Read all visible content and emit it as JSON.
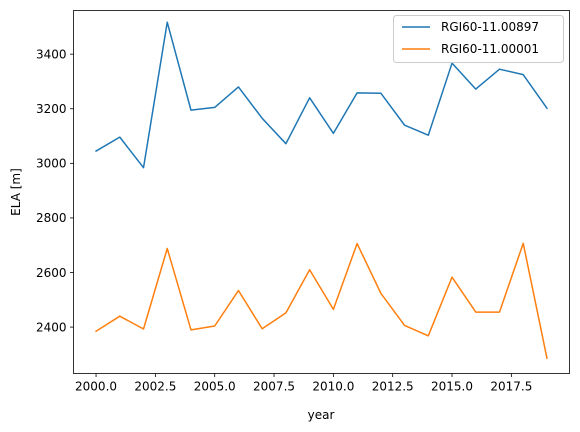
{
  "chart_data": {
    "type": "line",
    "title": "",
    "xlabel": "year",
    "ylabel": "ELA [m]",
    "xlim": [
      1999.05,
      2019.95
    ],
    "ylim": [
      2230,
      3560
    ],
    "xticks": [
      {
        "value": 2000.0,
        "label": "2000.0"
      },
      {
        "value": 2002.5,
        "label": "2002.5"
      },
      {
        "value": 2005.0,
        "label": "2005.0"
      },
      {
        "value": 2007.5,
        "label": "2007.5"
      },
      {
        "value": 2010.0,
        "label": "2010.0"
      },
      {
        "value": 2012.5,
        "label": "2012.5"
      },
      {
        "value": 2015.0,
        "label": "2015.0"
      },
      {
        "value": 2017.5,
        "label": "2017.5"
      }
    ],
    "yticks": [
      {
        "value": 2400,
        "label": "2400"
      },
      {
        "value": 2600,
        "label": "2600"
      },
      {
        "value": 2800,
        "label": "2800"
      },
      {
        "value": 3000,
        "label": "3000"
      },
      {
        "value": 3200,
        "label": "3200"
      },
      {
        "value": 3400,
        "label": "3400"
      }
    ],
    "grid": false,
    "legend_position": "top-right",
    "x": [
      2000,
      2001,
      2002,
      2003,
      2004,
      2005,
      2006,
      2007,
      2008,
      2009,
      2010,
      2011,
      2012,
      2013,
      2014,
      2015,
      2016,
      2017,
      2018,
      2019
    ],
    "series": [
      {
        "name": "RGI60-11.00897",
        "color": "#1f77b4",
        "values": [
          3045,
          3096,
          2984,
          3517,
          3195,
          3205,
          3280,
          3165,
          3072,
          3240,
          3110,
          3258,
          3257,
          3140,
          3103,
          3367,
          3272,
          3345,
          3325,
          3202
        ]
      },
      {
        "name": "RGI60-11.00001",
        "color": "#ff7f0e",
        "values": [
          2385,
          2440,
          2393,
          2688,
          2390,
          2404,
          2534,
          2394,
          2452,
          2610,
          2465,
          2706,
          2524,
          2406,
          2368,
          2583,
          2455,
          2455,
          2707,
          2286
        ]
      }
    ]
  }
}
